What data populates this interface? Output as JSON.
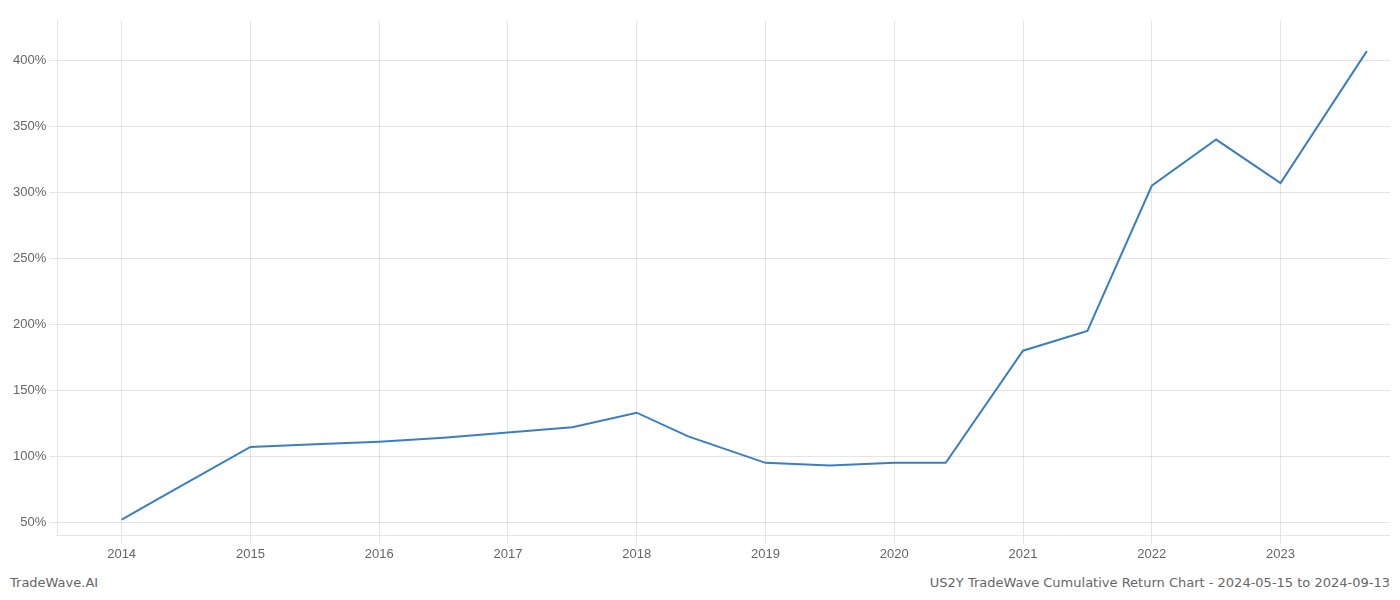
{
  "chart_data": {
    "type": "line",
    "annotations": [
      "TradeWave.AI",
      "US2Y TradeWave Cumulative Return Chart - 2024-05-15 to 2024-09-13"
    ],
    "x": [
      2014.0,
      2014.38,
      2015.0,
      2015.5,
      2016.0,
      2016.5,
      2017.0,
      2017.5,
      2018.0,
      2018.4,
      2019.0,
      2019.5,
      2020.0,
      2020.4,
      2021.0,
      2021.5,
      2022.0,
      2022.5,
      2023.0,
      2023.67
    ],
    "values": [
      52,
      73,
      107,
      109,
      111,
      114,
      118,
      122,
      133,
      115,
      95,
      93,
      95,
      95,
      180,
      195,
      305,
      340,
      307,
      407
    ],
    "color": "#3a7fc1",
    "xlim": [
      2013.5,
      2023.85
    ],
    "xticks": [
      2014,
      2015,
      2016,
      2017,
      2018,
      2019,
      2020,
      2021,
      2022,
      2023
    ],
    "ylim": [
      40,
      430
    ],
    "yticks": [
      {
        "value": 50,
        "label": "50%"
      },
      {
        "value": 100,
        "label": "100%"
      },
      {
        "value": 150,
        "label": "150%"
      },
      {
        "value": 200,
        "label": "200%"
      },
      {
        "value": 250,
        "label": "250%"
      },
      {
        "value": 300,
        "label": "300%"
      },
      {
        "value": 350,
        "label": "350%"
      },
      {
        "value": 400,
        "label": "400%"
      }
    ],
    "grid": true
  }
}
